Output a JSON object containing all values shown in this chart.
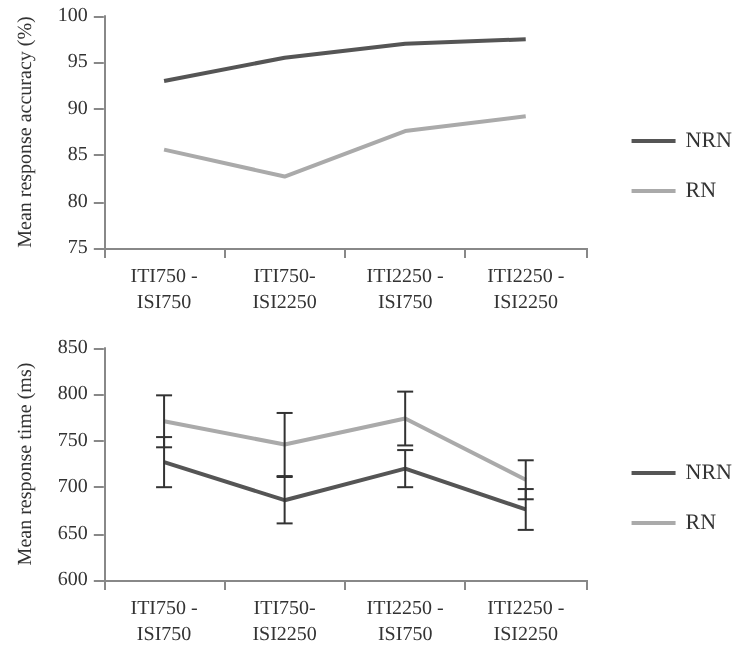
{
  "chart_data": [
    {
      "type": "line",
      "ylabel": "Mean response accuracy (%)",
      "categories": [
        "ITI750 -\nISI750",
        "ITI750-\nISI2250",
        "ITI2250 -\nISI750",
        "ITI2250 -\nISI2250"
      ],
      "ylim": [
        75,
        100
      ],
      "yticks": [
        75,
        80,
        85,
        90,
        95,
        100
      ],
      "grid": false,
      "legend": "right",
      "marker": "none",
      "line_style": "solid",
      "series": [
        {
          "name": "NRN",
          "color": "#555555",
          "values": [
            93,
            95.5,
            97,
            97.5
          ]
        },
        {
          "name": "RN",
          "color": "#aaaaaa",
          "values": [
            85.6,
            82.7,
            87.6,
            89.2
          ]
        }
      ]
    },
    {
      "type": "line",
      "ylabel": "Mean response time (ms)",
      "categories": [
        "ITI750 -\nISI750",
        "ITI750-\nISI2250",
        "ITI2250 -\nISI750",
        "ITI2250 -\nISI2250"
      ],
      "ylim": [
        600,
        850
      ],
      "yticks": [
        600,
        650,
        700,
        750,
        800,
        850
      ],
      "grid": false,
      "legend": "right",
      "marker": "none",
      "line_style": "solid",
      "series": [
        {
          "name": "NRN",
          "color": "#555555",
          "values": [
            727,
            686,
            720,
            676
          ],
          "errors": [
            27,
            25,
            20,
            22
          ]
        },
        {
          "name": "RN",
          "color": "#aaaaaa",
          "values": [
            771,
            746,
            774,
            708
          ],
          "errors": [
            28,
            34,
            29,
            21
          ]
        }
      ]
    }
  ]
}
